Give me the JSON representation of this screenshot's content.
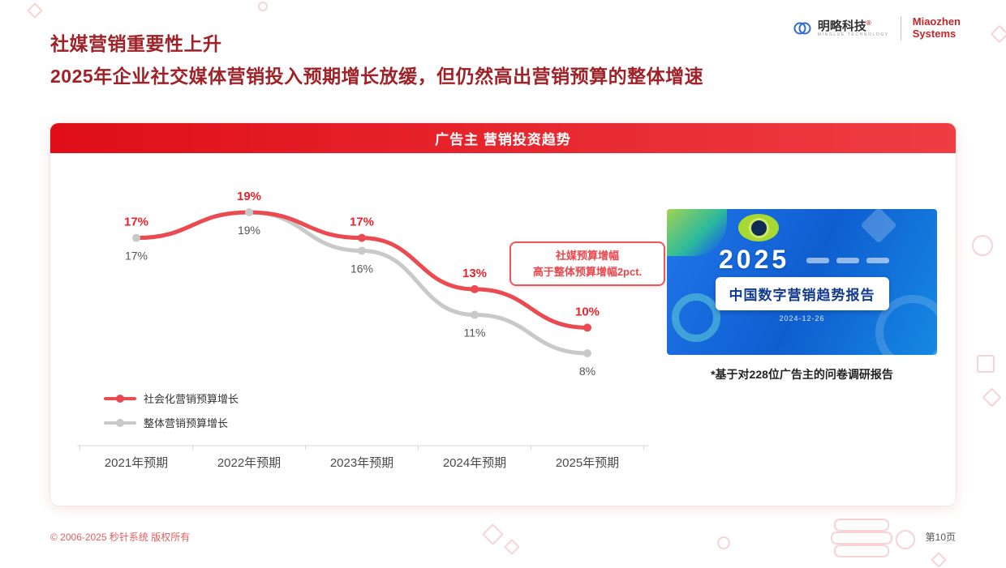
{
  "slide": {
    "title_line1": "社媒营销重要性上升",
    "title_line2": "2025年企业社交媒体营销投入预期增长放缓，但仍然高出营销预算的整体增速",
    "footer_left": "© 2006-2025 秒针系统 版权所有",
    "footer_right": "第10页"
  },
  "logos": {
    "minglue_name": "明略科技",
    "minglue_reg": "®",
    "minglue_sub": "MINGLUE TECHNOLOGY",
    "miaozhen_line1": "Miaozhen",
    "miaozhen_line2": "Systems"
  },
  "panel": {
    "header": "广告主 营销投资趋势"
  },
  "chart_data": {
    "type": "line",
    "title": "广告主 营销投资趋势",
    "categories": [
      "2021年预期",
      "2022年预期",
      "2023年预期",
      "2024年预期",
      "2025年预期"
    ],
    "series": [
      {
        "name": "社会化营销预算增长",
        "values": [
          17,
          19,
          17,
          13,
          10
        ],
        "labels": [
          "17%",
          "19%",
          "17%",
          "13%",
          "10%"
        ],
        "color": "#ea4a50"
      },
      {
        "name": "整体营销预算增长",
        "values": [
          17,
          19,
          16,
          11,
          8
        ],
        "labels": [
          "17%",
          "19%",
          "16%",
          "11%",
          "8%"
        ],
        "color": "#c9c9c9"
      }
    ],
    "annotation": {
      "line1": "社媒预算增幅",
      "line2": "高于整体预算增幅2pct."
    },
    "ylim": [
      6,
      21
    ],
    "grid": false,
    "legend_position": "bottom-left"
  },
  "report_banner": {
    "year": "2025",
    "title": "中国数字营销趋势报告",
    "date": "2024-12-26",
    "caption": "*基于对228位广告主的问卷调研报告"
  },
  "colors": {
    "accent_red": "#e31219",
    "title_red": "#9e2227",
    "series_social": "#ea4a50",
    "series_overall": "#c9c9c9",
    "banner_blue": "#1b6fe0"
  }
}
